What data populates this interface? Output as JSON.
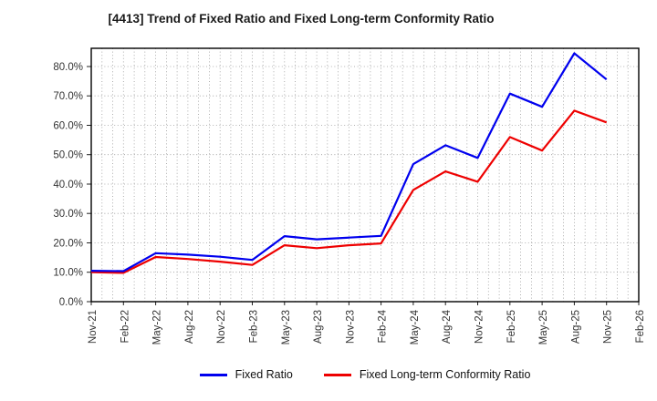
{
  "chart_data": {
    "type": "line",
    "title": "[4413]  Trend of Fixed Ratio and Fixed Long-term Conformity Ratio",
    "categories": [
      "Nov-21",
      "Feb-22",
      "May-22",
      "Aug-22",
      "Nov-22",
      "Feb-23",
      "May-23",
      "Aug-23",
      "Nov-23",
      "Feb-24",
      "May-24",
      "Aug-24",
      "Nov-24",
      "Feb-25",
      "May-25",
      "Aug-25",
      "Nov-25",
      "Feb-26"
    ],
    "series": [
      {
        "name": "Fixed Ratio",
        "color": "#0000ee",
        "values": [
          10.5,
          10.4,
          16.5,
          16.0,
          15.3,
          14.2,
          22.3,
          21.2,
          21.8,
          22.4,
          46.8,
          53.2,
          48.9,
          70.8,
          66.3,
          84.5,
          75.6,
          null
        ]
      },
      {
        "name": "Fixed Long-term Conformity Ratio",
        "color": "#ee0000",
        "values": [
          10.0,
          9.8,
          15.2,
          14.5,
          13.6,
          12.5,
          19.2,
          18.2,
          19.2,
          19.8,
          38.0,
          44.3,
          40.8,
          56.0,
          51.4,
          65.0,
          61.0,
          null
        ]
      }
    ],
    "ytick_labels": [
      "0.0%",
      "10.0%",
      "20.0%",
      "30.0%",
      "40.0%",
      "50.0%",
      "60.0%",
      "70.0%",
      "80.0%"
    ],
    "ylim": [
      0,
      86.2
    ],
    "grid": "dotted, horizontal every 10%, vertical every month",
    "minor_x_divisions": 3,
    "legend_position": "bottom"
  }
}
